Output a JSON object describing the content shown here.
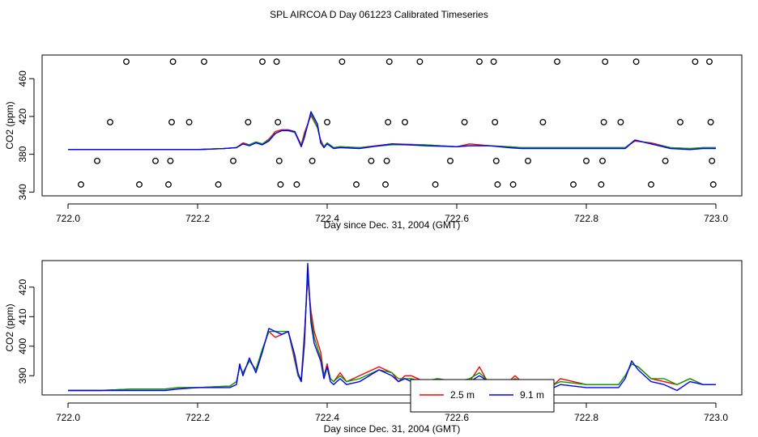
{
  "title": "SPL AIRCOA D  Day 061223  Calibrated Timeseries",
  "chart_data": [
    {
      "type": "line",
      "xlabel": "Day since Dec. 31, 2004 (GMT)",
      "ylabel": "CO2 (ppm)",
      "xlim": [
        722.0,
        723.0
      ],
      "ylim": [
        336,
        485
      ],
      "xticks": [
        "722.0",
        "722.2",
        "722.4",
        "722.6",
        "722.8",
        "723.0"
      ],
      "xtick_values": [
        722.0,
        722.2,
        722.4,
        722.6,
        722.8,
        723.0
      ],
      "yticks": [
        "340",
        "380",
        "420",
        "460"
      ],
      "ytick_values": [
        340,
        380,
        420,
        460
      ],
      "grid": false,
      "colors": {
        "red": "#ff0000",
        "green": "#00a000",
        "blue": "#0000ff"
      },
      "x": [
        722.0,
        722.05,
        722.1,
        722.15,
        722.2,
        722.24,
        722.26,
        722.27,
        722.28,
        722.29,
        722.3,
        722.31,
        722.32,
        722.33,
        722.34,
        722.35,
        722.36,
        722.365,
        722.375,
        722.385,
        722.39,
        722.395,
        722.4,
        722.41,
        722.42,
        722.45,
        722.5,
        722.55,
        722.6,
        722.62,
        722.65,
        722.68,
        722.7,
        722.75,
        722.8,
        722.86,
        722.875,
        722.9,
        722.93,
        722.96,
        722.98,
        723.0
      ],
      "series": [
        {
          "color": "red",
          "values": [
            385,
            385,
            385,
            385,
            385,
            386,
            387,
            392,
            390,
            393,
            391,
            396,
            404,
            406,
            406,
            404,
            390,
            403,
            421,
            408,
            395,
            388,
            392,
            387,
            388,
            387,
            391,
            390,
            388,
            391,
            389,
            388,
            387,
            387,
            387,
            387,
            394,
            392,
            387,
            386,
            387,
            387
          ]
        },
        {
          "color": "green",
          "values": [
            385,
            385,
            385,
            385,
            385,
            386,
            387,
            391,
            390,
            393,
            391,
            395,
            402,
            405,
            405,
            403,
            389,
            400,
            423,
            409,
            393,
            388,
            392,
            387,
            388,
            387,
            390,
            390,
            388,
            389,
            389,
            388,
            387,
            387,
            387,
            387,
            395,
            391,
            387,
            386,
            387,
            387
          ]
        },
        {
          "color": "blue",
          "values": [
            385,
            385,
            385,
            385,
            385,
            386,
            387,
            391,
            389,
            392,
            390,
            394,
            402,
            405,
            405,
            404,
            388,
            398,
            425,
            412,
            392,
            387,
            391,
            386,
            387,
            386,
            391,
            389,
            388,
            389,
            389,
            387,
            386,
            386,
            386,
            386,
            395,
            391,
            386,
            385,
            386,
            386
          ]
        }
      ],
      "markers": [
        {
          "x": 722.02,
          "y": 348
        },
        {
          "x": 722.045,
          "y": 373
        },
        {
          "x": 722.065,
          "y": 414
        },
        {
          "x": 722.09,
          "y": 478
        },
        {
          "x": 722.11,
          "y": 348
        },
        {
          "x": 722.135,
          "y": 373
        },
        {
          "x": 722.155,
          "y": 348
        },
        {
          "x": 722.158,
          "y": 373
        },
        {
          "x": 722.16,
          "y": 414
        },
        {
          "x": 722.162,
          "y": 478
        },
        {
          "x": 722.187,
          "y": 414
        },
        {
          "x": 722.21,
          "y": 478
        },
        {
          "x": 722.232,
          "y": 348
        },
        {
          "x": 722.255,
          "y": 373
        },
        {
          "x": 722.278,
          "y": 414
        },
        {
          "x": 722.3,
          "y": 478
        },
        {
          "x": 722.322,
          "y": 478
        },
        {
          "x": 722.324,
          "y": 414
        },
        {
          "x": 722.326,
          "y": 373
        },
        {
          "x": 722.328,
          "y": 348
        },
        {
          "x": 722.353,
          "y": 348
        },
        {
          "x": 722.377,
          "y": 373
        },
        {
          "x": 722.4,
          "y": 414
        },
        {
          "x": 722.423,
          "y": 478
        },
        {
          "x": 722.445,
          "y": 348
        },
        {
          "x": 722.468,
          "y": 373
        },
        {
          "x": 722.49,
          "y": 348
        },
        {
          "x": 722.492,
          "y": 373
        },
        {
          "x": 722.494,
          "y": 414
        },
        {
          "x": 722.496,
          "y": 478
        },
        {
          "x": 722.52,
          "y": 414
        },
        {
          "x": 722.543,
          "y": 478
        },
        {
          "x": 722.567,
          "y": 348
        },
        {
          "x": 722.59,
          "y": 373
        },
        {
          "x": 722.612,
          "y": 414
        },
        {
          "x": 722.635,
          "y": 478
        },
        {
          "x": 722.657,
          "y": 478
        },
        {
          "x": 722.659,
          "y": 414
        },
        {
          "x": 722.661,
          "y": 373
        },
        {
          "x": 722.663,
          "y": 348
        },
        {
          "x": 722.687,
          "y": 348
        },
        {
          "x": 722.71,
          "y": 373
        },
        {
          "x": 722.733,
          "y": 414
        },
        {
          "x": 722.755,
          "y": 478
        },
        {
          "x": 722.78,
          "y": 348
        },
        {
          "x": 722.8,
          "y": 373
        },
        {
          "x": 722.823,
          "y": 348
        },
        {
          "x": 722.825,
          "y": 373
        },
        {
          "x": 722.827,
          "y": 414
        },
        {
          "x": 722.829,
          "y": 478
        },
        {
          "x": 722.853,
          "y": 414
        },
        {
          "x": 722.877,
          "y": 478
        },
        {
          "x": 722.9,
          "y": 348
        },
        {
          "x": 722.922,
          "y": 373
        },
        {
          "x": 722.945,
          "y": 414
        },
        {
          "x": 722.968,
          "y": 478
        },
        {
          "x": 722.99,
          "y": 478
        },
        {
          "x": 722.992,
          "y": 414
        },
        {
          "x": 722.994,
          "y": 373
        },
        {
          "x": 722.996,
          "y": 348
        }
      ]
    },
    {
      "type": "line",
      "xlabel": "Day since Dec. 31, 2004 (GMT)",
      "ylabel": "CO2 (ppm)",
      "xlim": [
        722.0,
        723.0
      ],
      "ylim": [
        383.5,
        429
      ],
      "xticks": [
        "722.0",
        "722.2",
        "722.4",
        "722.6",
        "722.8",
        "723.0"
      ],
      "xtick_values": [
        722.0,
        722.2,
        722.4,
        722.6,
        722.8,
        723.0
      ],
      "yticks": [
        "390",
        "400",
        "410",
        "420"
      ],
      "ytick_values": [
        390,
        400,
        410,
        420
      ],
      "grid": false,
      "legend": {
        "position": "bottom-center",
        "entries": [
          {
            "label": "2.5 m",
            "color": "red"
          },
          {
            "label": "9.1 m",
            "color": "blue"
          }
        ]
      },
      "x": [
        722.0,
        722.05,
        722.1,
        722.15,
        722.17,
        722.2,
        722.25,
        722.26,
        722.265,
        722.27,
        722.28,
        722.29,
        722.3,
        722.31,
        722.32,
        722.33,
        722.34,
        722.35,
        722.355,
        722.36,
        722.365,
        722.37,
        722.375,
        722.38,
        722.39,
        722.395,
        722.4,
        722.405,
        722.41,
        722.42,
        722.43,
        722.45,
        722.48,
        722.5,
        722.51,
        722.52,
        722.53,
        722.55,
        722.57,
        722.6,
        722.62,
        722.635,
        722.65,
        722.68,
        722.69,
        722.7,
        722.75,
        722.76,
        722.8,
        722.85,
        722.86,
        722.87,
        722.88,
        722.9,
        722.92,
        722.94,
        722.96,
        722.98,
        723.0
      ],
      "series": [
        {
          "name": "2.5 m",
          "color": "red",
          "values": [
            385,
            385,
            385.5,
            385.5,
            386,
            386,
            386.5,
            388,
            393,
            391,
            395,
            392,
            399,
            405,
            403,
            404,
            405,
            395,
            390,
            389,
            405,
            423,
            412,
            405,
            398,
            390,
            394,
            389,
            388,
            391,
            388,
            390,
            393,
            391,
            388,
            390,
            390,
            388,
            389,
            388,
            388,
            393,
            387,
            388,
            390,
            388,
            387,
            389,
            387,
            387,
            390,
            394,
            393,
            389,
            388,
            387,
            389,
            387,
            387
          ]
        },
        {
          "name": "",
          "color": "green",
          "values": [
            385,
            385,
            385.5,
            385.5,
            386,
            386,
            386.5,
            388,
            393,
            391,
            395,
            392,
            399,
            405,
            405,
            405,
            405,
            396,
            390,
            388,
            403,
            425,
            410,
            403,
            396,
            390,
            393,
            389,
            388,
            390,
            388,
            389,
            392,
            391,
            389,
            389,
            389,
            388,
            389,
            388,
            389,
            391,
            388,
            388,
            389,
            388,
            387,
            388,
            387,
            387,
            390,
            394,
            393,
            389,
            389,
            387,
            389,
            387,
            387
          ]
        },
        {
          "name": "9.1 m",
          "color": "blue",
          "values": [
            385,
            385,
            385,
            385,
            385.5,
            386,
            386,
            387,
            394,
            390,
            396,
            391,
            398,
            406,
            405,
            404,
            405,
            397,
            391,
            388,
            401,
            428,
            408,
            401,
            395,
            389,
            393,
            388,
            387,
            389,
            387,
            388,
            392,
            390,
            388,
            389,
            388,
            387,
            388,
            388,
            388,
            390,
            388,
            387,
            388,
            387,
            386,
            387,
            386,
            386,
            389,
            395,
            392,
            388,
            387,
            385,
            388,
            387,
            387
          ]
        }
      ]
    }
  ]
}
